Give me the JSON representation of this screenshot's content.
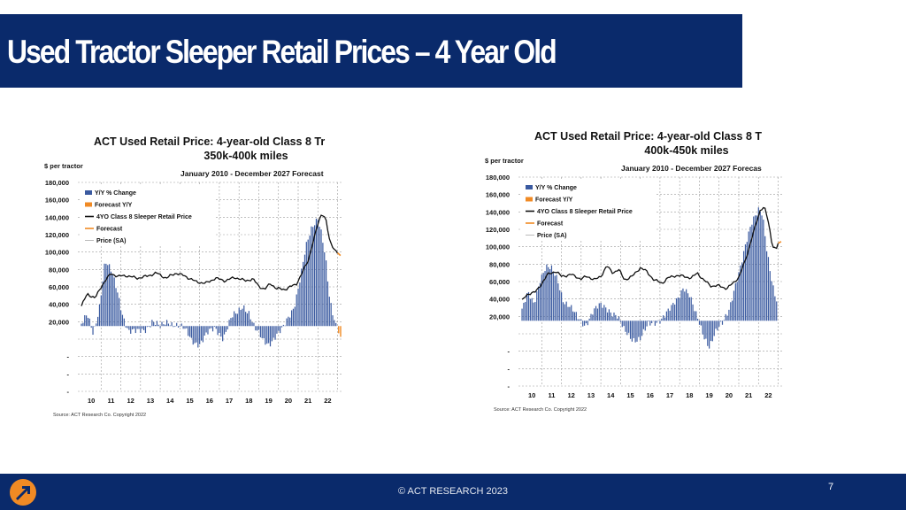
{
  "slide": {
    "title": "Used Tractor Sleeper Retail Prices – 4 Year Old",
    "footer": "© ACT RESEARCH 2023",
    "page_number": "7",
    "colors": {
      "navy": "#0a2a6b",
      "bar": "#3a5aa0",
      "forecast": "#f08a24"
    }
  },
  "chart_data": [
    {
      "type": "bar+line",
      "title_line1": "ACT Used Retail Price: 4-year-old Class 8 Tr",
      "title_line2": "350k-400k miles",
      "period": "January 2010 - December 2027 Forecast",
      "ylabel": "$ per tractor",
      "yticks": [
        "180,000",
        "160,000",
        "140,000",
        "120,000",
        "100,000",
        "80,000",
        "60,000",
        "40,000",
        "20,000",
        "",
        "-",
        "-",
        "-"
      ],
      "xticks": [
        "10",
        "11",
        "12",
        "13",
        "14",
        "15",
        "16",
        "17",
        "18",
        "19",
        "20",
        "21",
        "22"
      ],
      "legend": [
        "Y/Y % Change",
        "Forecast Y/Y",
        "4YO Class 8 Sleeper Retail Price",
        "Forecast",
        "Price (SA)"
      ],
      "source": "Source: ACT Research Co. Copyright 2022",
      "x_start": 2010,
      "price_knots": [
        [
          2010.0,
          38000
        ],
        [
          2010.3,
          52000
        ],
        [
          2010.7,
          47000
        ],
        [
          2011.0,
          60000
        ],
        [
          2011.2,
          67000
        ],
        [
          2011.5,
          75000
        ],
        [
          2011.9,
          72000
        ],
        [
          2012.3,
          73000
        ],
        [
          2012.8,
          70000
        ],
        [
          2013.3,
          72000
        ],
        [
          2013.8,
          76000
        ],
        [
          2014.3,
          70000
        ],
        [
          2014.8,
          76000
        ],
        [
          2015.3,
          72000
        ],
        [
          2015.8,
          66000
        ],
        [
          2016.3,
          64000
        ],
        [
          2016.8,
          70000
        ],
        [
          2017.3,
          67000
        ],
        [
          2017.8,
          71000
        ],
        [
          2018.3,
          67000
        ],
        [
          2018.7,
          69000
        ],
        [
          2019.0,
          61000
        ],
        [
          2019.3,
          57000
        ],
        [
          2019.6,
          64000
        ],
        [
          2019.9,
          58000
        ],
        [
          2020.3,
          57000
        ],
        [
          2020.6,
          60000
        ],
        [
          2020.9,
          63000
        ],
        [
          2021.2,
          76000
        ],
        [
          2021.5,
          90000
        ],
        [
          2021.8,
          115000
        ],
        [
          2022.0,
          132000
        ],
        [
          2022.2,
          145000
        ],
        [
          2022.4,
          138000
        ],
        [
          2022.6,
          112000
        ],
        [
          2022.8,
          105000
        ],
        [
          2023.0,
          99000
        ]
      ],
      "forecast_knots": [
        [
          2023.0,
          99000
        ],
        [
          2023.15,
          96000
        ]
      ],
      "yoy_knots": [
        [
          2010.0,
          2000
        ],
        [
          2010.3,
          8000
        ],
        [
          2010.6,
          -7000
        ],
        [
          2010.9,
          16000
        ],
        [
          2011.2,
          55000
        ],
        [
          2011.5,
          45000
        ],
        [
          2011.8,
          30000
        ],
        [
          2012.1,
          10000
        ],
        [
          2012.4,
          -4000
        ],
        [
          2012.8,
          -6000
        ],
        [
          2013.2,
          -3000
        ],
        [
          2013.6,
          5000
        ],
        [
          2014.0,
          -2000
        ],
        [
          2014.4,
          4000
        ],
        [
          2014.8,
          2000
        ],
        [
          2015.2,
          -3000
        ],
        [
          2015.6,
          -12000
        ],
        [
          2016.0,
          -14000
        ],
        [
          2016.4,
          -7000
        ],
        [
          2016.8,
          -2000
        ],
        [
          2017.2,
          -9000
        ],
        [
          2017.6,
          6000
        ],
        [
          2017.9,
          10000
        ],
        [
          2018.2,
          18000
        ],
        [
          2018.5,
          12000
        ],
        [
          2018.8,
          -3000
        ],
        [
          2019.2,
          -12000
        ],
        [
          2019.5,
          -14000
        ],
        [
          2019.8,
          -9000
        ],
        [
          2020.2,
          -4000
        ],
        [
          2020.5,
          7000
        ],
        [
          2020.8,
          18000
        ],
        [
          2021.1,
          40000
        ],
        [
          2021.4,
          65000
        ],
        [
          2021.7,
          82000
        ],
        [
          2022.0,
          92000
        ],
        [
          2022.2,
          78000
        ],
        [
          2022.4,
          55000
        ],
        [
          2022.6,
          20000
        ],
        [
          2022.8,
          5000
        ],
        [
          2023.0,
          -4000
        ]
      ],
      "forecast_yoy_knots": [
        [
          2023.05,
          -6000
        ],
        [
          2023.15,
          -9000
        ]
      ]
    },
    {
      "type": "bar+line",
      "title_line1": "ACT Used Retail Price: 4-year-old Class 8 T",
      "title_line2": "400k-450k miles",
      "period": "January 2010 - December 2027 Forecas",
      "ylabel": "$ per tractor",
      "yticks": [
        "180,000",
        "160,000",
        "140,000",
        "120,000",
        "100,000",
        "80,000",
        "60,000",
        "40,000",
        "20,000",
        "",
        "-",
        "-",
        "-"
      ],
      "xticks": [
        "10",
        "11",
        "12",
        "13",
        "14",
        "15",
        "16",
        "17",
        "18",
        "19",
        "20",
        "21",
        "22"
      ],
      "legend": [
        "Y/Y % Change",
        "Forecast Y/Y",
        "4YO Class 8 Sleeper Retail Price",
        "Forecast",
        "Price (SA)"
      ],
      "source": "Source: ACT Research Co. Copyright 2022",
      "x_start": 2010,
      "price_knots": [
        [
          2010.0,
          38000
        ],
        [
          2010.3,
          46000
        ],
        [
          2010.7,
          48000
        ],
        [
          2011.0,
          58000
        ],
        [
          2011.3,
          68000
        ],
        [
          2011.7,
          72000
        ],
        [
          2012.0,
          66000
        ],
        [
          2012.5,
          68000
        ],
        [
          2013.0,
          63000
        ],
        [
          2013.3,
          66000
        ],
        [
          2013.7,
          62000
        ],
        [
          2014.0,
          66000
        ],
        [
          2014.3,
          78000
        ],
        [
          2014.6,
          70000
        ],
        [
          2014.9,
          74000
        ],
        [
          2015.2,
          62000
        ],
        [
          2015.6,
          66000
        ],
        [
          2016.0,
          76000
        ],
        [
          2016.3,
          72000
        ],
        [
          2016.7,
          62000
        ],
        [
          2017.1,
          58000
        ],
        [
          2017.4,
          64000
        ],
        [
          2017.8,
          67000
        ],
        [
          2018.2,
          66000
        ],
        [
          2018.6,
          64000
        ],
        [
          2018.9,
          70000
        ],
        [
          2019.2,
          62000
        ],
        [
          2019.6,
          55000
        ],
        [
          2020.0,
          55000
        ],
        [
          2020.4,
          52000
        ],
        [
          2020.7,
          58000
        ],
        [
          2021.0,
          65000
        ],
        [
          2021.3,
          82000
        ],
        [
          2021.6,
          105000
        ],
        [
          2021.9,
          128000
        ],
        [
          2022.1,
          143000
        ],
        [
          2022.3,
          146000
        ],
        [
          2022.5,
          128000
        ],
        [
          2022.7,
          102000
        ],
        [
          2022.9,
          97000
        ],
        [
          2023.0,
          104000
        ]
      ],
      "forecast_knots": [
        [
          2023.0,
          104000
        ],
        [
          2023.15,
          106000
        ]
      ],
      "yoy_knots": [
        [
          2010.0,
          8000
        ],
        [
          2010.3,
          22000
        ],
        [
          2010.6,
          15000
        ],
        [
          2010.9,
          35000
        ],
        [
          2011.2,
          44000
        ],
        [
          2011.5,
          42000
        ],
        [
          2011.8,
          35000
        ],
        [
          2012.1,
          18000
        ],
        [
          2012.4,
          12000
        ],
        [
          2012.8,
          2000
        ],
        [
          2013.2,
          -3000
        ],
        [
          2013.6,
          8000
        ],
        [
          2014.0,
          12000
        ],
        [
          2014.4,
          10000
        ],
        [
          2014.8,
          5000
        ],
        [
          2015.2,
          -10000
        ],
        [
          2015.6,
          -15000
        ],
        [
          2016.0,
          -14000
        ],
        [
          2016.4,
          -5000
        ],
        [
          2016.8,
          -1000
        ],
        [
          2017.2,
          5000
        ],
        [
          2017.6,
          10000
        ],
        [
          2017.9,
          18000
        ],
        [
          2018.2,
          30000
        ],
        [
          2018.5,
          22000
        ],
        [
          2018.8,
          5000
        ],
        [
          2019.2,
          -12000
        ],
        [
          2019.5,
          -20000
        ],
        [
          2019.8,
          -10000
        ],
        [
          2020.2,
          -3000
        ],
        [
          2020.5,
          10000
        ],
        [
          2020.8,
          30000
        ],
        [
          2021.1,
          45000
        ],
        [
          2021.4,
          65000
        ],
        [
          2021.7,
          85000
        ],
        [
          2022.0,
          95000
        ],
        [
          2022.2,
          90000
        ],
        [
          2022.4,
          60000
        ],
        [
          2022.6,
          38000
        ],
        [
          2022.8,
          22000
        ],
        [
          2023.0,
          15000
        ]
      ],
      "forecast_yoy_knots": []
    }
  ]
}
